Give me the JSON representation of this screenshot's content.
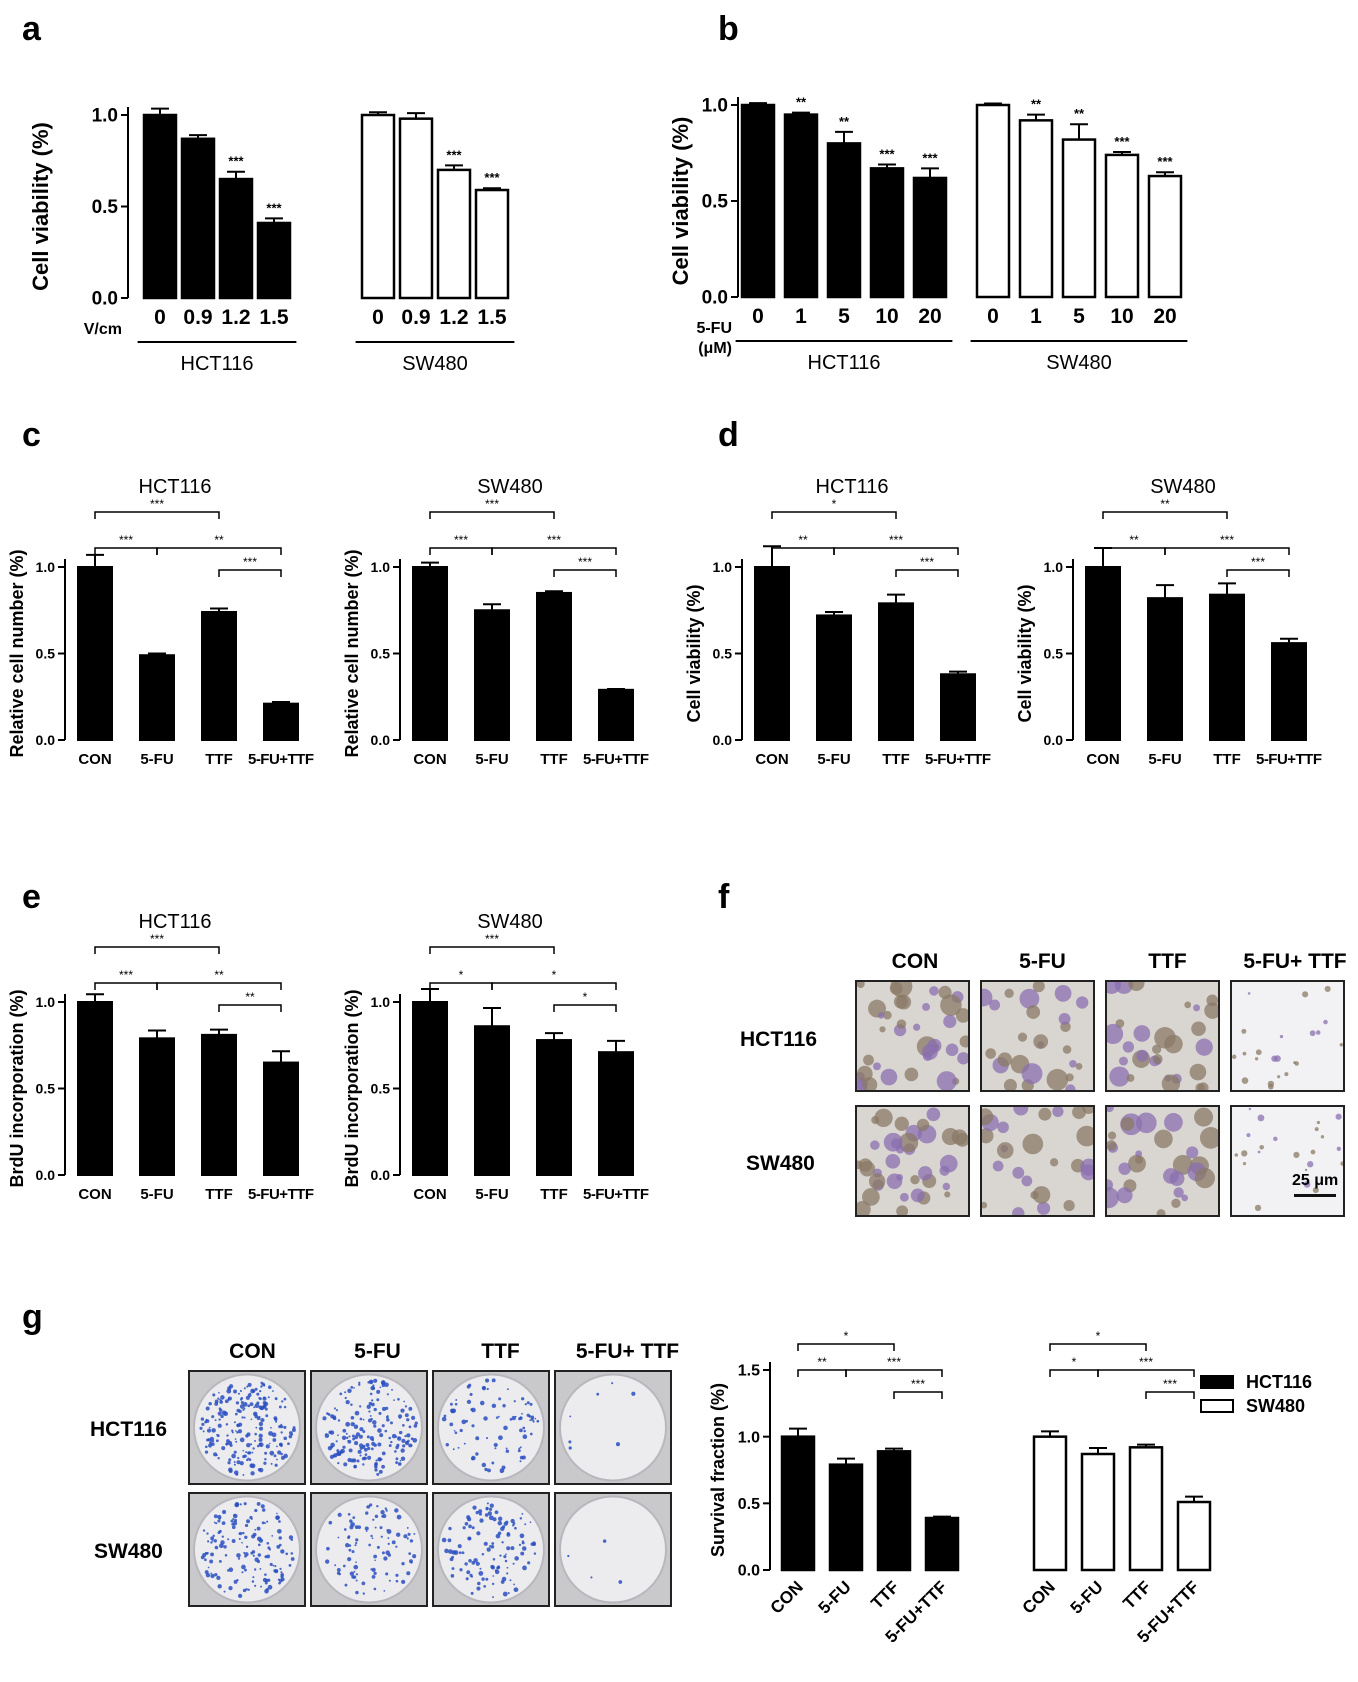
{
  "panel_labels": {
    "a": "a",
    "b": "b",
    "c": "c",
    "d": "d",
    "e": "e",
    "f": "f",
    "g": "g"
  },
  "photo_f": {
    "columns": [
      "CON",
      "5-FU",
      "TTF",
      "5-FU+ TTF"
    ],
    "rows": [
      "HCT116",
      "SW480"
    ],
    "scale_bar": "25 μm",
    "colony_color": "#8a7a66",
    "cell_color": "#8a6fb0"
  },
  "photo_g": {
    "columns": [
      "CON",
      "5-FU",
      "TTF",
      "5-FU+ TTF"
    ],
    "rows": [
      "HCT116",
      "SW480"
    ],
    "stain_color": "#2a4fc0",
    "density": [
      [
        1.0,
        0.85,
        0.4,
        0.03
      ],
      [
        0.7,
        0.45,
        0.55,
        0.02
      ]
    ]
  },
  "chart_data": [
    {
      "id": "a",
      "type": "bar",
      "ylabel": "Cell viability (%)",
      "ylim": [
        0,
        1.0
      ],
      "yticks": [
        "0.0",
        "0.5",
        "1.0"
      ],
      "axis_prefix": "V/cm",
      "groups": [
        {
          "name": "HCT116",
          "fill": "#000000",
          "categories": [
            "0",
            "0.9",
            "1.2",
            "1.5"
          ],
          "values": [
            1.0,
            0.87,
            0.65,
            0.41
          ],
          "errors": [
            0.035,
            0.02,
            0.04,
            0.025
          ],
          "sig": [
            "",
            "",
            "***",
            "***"
          ]
        },
        {
          "name": "SW480",
          "fill": "#ffffff",
          "categories": [
            "0",
            "0.9",
            "1.2",
            "1.5"
          ],
          "values": [
            1.0,
            0.98,
            0.7,
            0.59
          ],
          "errors": [
            0.015,
            0.03,
            0.025,
            0.01
          ],
          "sig": [
            "",
            "",
            "***",
            "***"
          ]
        }
      ]
    },
    {
      "id": "b",
      "type": "bar",
      "ylabel": "Cell viability (%)",
      "ylim": [
        0,
        1.0
      ],
      "yticks": [
        "0.0",
        "0.5",
        "1.0"
      ],
      "axis_prefix": "5-FU",
      "axis_prefix2": "(μM)",
      "groups": [
        {
          "name": "HCT116",
          "fill": "#000000",
          "categories": [
            "0",
            "1",
            "5",
            "10",
            "20"
          ],
          "values": [
            1.0,
            0.95,
            0.8,
            0.67,
            0.62
          ],
          "errors": [
            0.01,
            0.01,
            0.06,
            0.02,
            0.05
          ],
          "sig": [
            "",
            "**",
            "**",
            "***",
            "***"
          ]
        },
        {
          "name": "SW480",
          "fill": "#ffffff",
          "categories": [
            "0",
            "1",
            "5",
            "10",
            "20"
          ],
          "values": [
            1.0,
            0.92,
            0.82,
            0.74,
            0.63
          ],
          "errors": [
            0.008,
            0.03,
            0.08,
            0.015,
            0.02
          ],
          "sig": [
            "",
            "**",
            "**",
            "***",
            "***"
          ]
        }
      ]
    },
    {
      "id": "c1",
      "type": "bar",
      "title": "HCT116",
      "ylabel": "Relative cell number (%)",
      "ylim": [
        0,
        1.0
      ],
      "yticks": [
        "0.0",
        "0.5",
        "1.0"
      ],
      "categories": [
        "CON",
        "5-FU",
        "TTF",
        "5-FU+TTF"
      ],
      "values": [
        1.0,
        0.49,
        0.74,
        0.21
      ],
      "errors": [
        0.07,
        0.01,
        0.02,
        0.01
      ],
      "brackets": [
        {
          "from": 0,
          "to": 2,
          "label": "***"
        },
        {
          "from": 0,
          "to": 1,
          "label": "***"
        },
        {
          "from": 1,
          "to": 3,
          "label": "**"
        },
        {
          "from": 2,
          "to": 3,
          "label": "***"
        }
      ]
    },
    {
      "id": "c2",
      "type": "bar",
      "title": "SW480",
      "ylabel": "Relative cell number (%)",
      "ylim": [
        0,
        1.0
      ],
      "yticks": [
        "0.0",
        "0.5",
        "1.0"
      ],
      "categories": [
        "CON",
        "5-FU",
        "TTF",
        "5-FU+TTF"
      ],
      "values": [
        1.0,
        0.75,
        0.85,
        0.29
      ],
      "errors": [
        0.025,
        0.035,
        0.01,
        0.005
      ],
      "brackets": [
        {
          "from": 0,
          "to": 2,
          "label": "***"
        },
        {
          "from": 0,
          "to": 1,
          "label": "***"
        },
        {
          "from": 1,
          "to": 3,
          "label": "***"
        },
        {
          "from": 2,
          "to": 3,
          "label": "***"
        }
      ]
    },
    {
      "id": "d1",
      "type": "bar",
      "title": "HCT116",
      "ylabel": "Cell viability (%)",
      "ylim": [
        0,
        1.0
      ],
      "yticks": [
        "0.0",
        "0.5",
        "1.0"
      ],
      "categories": [
        "CON",
        "5-FU",
        "TTF",
        "5-FU+TTF"
      ],
      "values": [
        1.0,
        0.72,
        0.79,
        0.38
      ],
      "errors": [
        0.12,
        0.02,
        0.05,
        0.015
      ],
      "brackets": [
        {
          "from": 0,
          "to": 2,
          "label": "*"
        },
        {
          "from": 0,
          "to": 1,
          "label": "**"
        },
        {
          "from": 1,
          "to": 3,
          "label": "***"
        },
        {
          "from": 2,
          "to": 3,
          "label": "***"
        }
      ]
    },
    {
      "id": "d2",
      "type": "bar",
      "title": "SW480",
      "ylabel": "Cell viability (%)",
      "ylim": [
        0,
        1.0
      ],
      "yticks": [
        "0.0",
        "0.5",
        "1.0"
      ],
      "categories": [
        "CON",
        "5-FU",
        "TTF",
        "5-FU+TTF"
      ],
      "values": [
        1.0,
        0.82,
        0.84,
        0.56
      ],
      "errors": [
        0.11,
        0.075,
        0.065,
        0.025
      ],
      "brackets": [
        {
          "from": 0,
          "to": 2,
          "label": "**"
        },
        {
          "from": 0,
          "to": 1,
          "label": "**"
        },
        {
          "from": 1,
          "to": 3,
          "label": "***"
        },
        {
          "from": 2,
          "to": 3,
          "label": "***"
        }
      ]
    },
    {
      "id": "e1",
      "type": "bar",
      "title": "HCT116",
      "ylabel": "BrdU incorporation (%)",
      "ylim": [
        0,
        1.0
      ],
      "yticks": [
        "0.0",
        "0.5",
        "1.0"
      ],
      "categories": [
        "CON",
        "5-FU",
        "TTF",
        "5-FU+TTF"
      ],
      "values": [
        1.0,
        0.79,
        0.81,
        0.65
      ],
      "errors": [
        0.045,
        0.045,
        0.03,
        0.065
      ],
      "brackets": [
        {
          "from": 0,
          "to": 2,
          "label": "***"
        },
        {
          "from": 0,
          "to": 1,
          "label": "***"
        },
        {
          "from": 1,
          "to": 3,
          "label": "**"
        },
        {
          "from": 2,
          "to": 3,
          "label": "**"
        }
      ]
    },
    {
      "id": "e2",
      "type": "bar",
      "title": "SW480",
      "ylabel": "BrdU incorporation (%)",
      "ylim": [
        0,
        1.0
      ],
      "yticks": [
        "0.0",
        "0.5",
        "1.0"
      ],
      "categories": [
        "CON",
        "5-FU",
        "TTF",
        "5-FU+TTF"
      ],
      "values": [
        1.0,
        0.86,
        0.78,
        0.71
      ],
      "errors": [
        0.075,
        0.105,
        0.04,
        0.065
      ],
      "brackets": [
        {
          "from": 0,
          "to": 2,
          "label": "***"
        },
        {
          "from": 0,
          "to": 1,
          "label": "*"
        },
        {
          "from": 1,
          "to": 3,
          "label": "*"
        },
        {
          "from": 2,
          "to": 3,
          "label": "*"
        }
      ]
    },
    {
      "id": "g",
      "type": "bar",
      "ylabel": "Survival fraction (%)",
      "ylim": [
        0,
        1.5
      ],
      "yticks": [
        "0.0",
        "0.5",
        "1.0",
        "1.5"
      ],
      "legend": [
        {
          "name": "HCT116",
          "fill": "#000000"
        },
        {
          "name": "SW480",
          "fill": "#ffffff"
        }
      ],
      "legend_position": "top-right",
      "groups": [
        {
          "name": "HCT116",
          "fill": "#000000",
          "categories": [
            "CON",
            "5-FU",
            "TTF",
            "5-FU+TTF"
          ],
          "values": [
            1.0,
            0.79,
            0.89,
            0.39
          ],
          "errors": [
            0.06,
            0.045,
            0.02,
            0.01
          ],
          "brackets": [
            {
              "from": 0,
              "to": 2,
              "label": "*"
            },
            {
              "from": 0,
              "to": 1,
              "label": "**"
            },
            {
              "from": 1,
              "to": 3,
              "label": "***"
            },
            {
              "from": 2,
              "to": 3,
              "label": "***"
            }
          ]
        },
        {
          "name": "SW480",
          "fill": "#ffffff",
          "categories": [
            "CON",
            "5-FU",
            "TTF",
            "5-FU+TTF"
          ],
          "values": [
            1.0,
            0.87,
            0.92,
            0.51
          ],
          "errors": [
            0.04,
            0.045,
            0.02,
            0.04
          ],
          "brackets": [
            {
              "from": 0,
              "to": 2,
              "label": "*"
            },
            {
              "from": 0,
              "to": 1,
              "label": "*"
            },
            {
              "from": 1,
              "to": 3,
              "label": "***"
            },
            {
              "from": 2,
              "to": 3,
              "label": "***"
            }
          ]
        }
      ]
    }
  ]
}
